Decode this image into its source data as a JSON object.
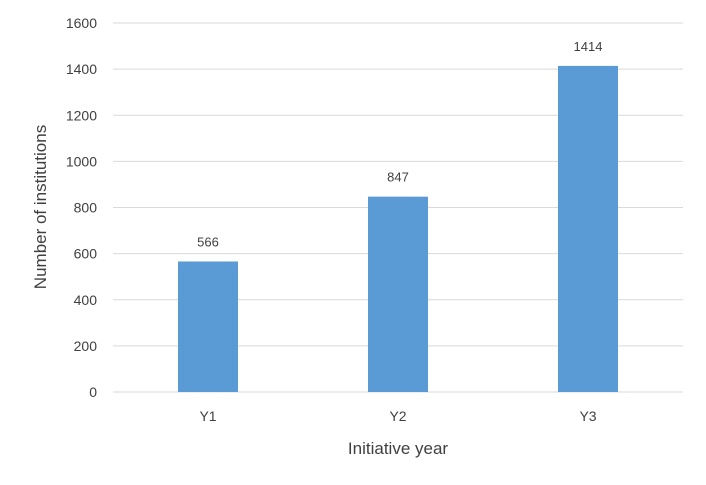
{
  "chart_data": {
    "type": "bar",
    "categories": [
      "Y1",
      "Y2",
      "Y3"
    ],
    "values": [
      566,
      847,
      1414
    ],
    "data_labels": [
      "566",
      "847",
      "1414"
    ],
    "xlabel": "Initiative year",
    "ylabel": "Number of institutions",
    "ylim": [
      0,
      1600
    ],
    "yticks": [
      "0",
      "200",
      "400",
      "600",
      "800",
      "1000",
      "1200",
      "1400",
      "1600"
    ],
    "grid": true,
    "legend": "none",
    "bar_color": "#5b9bd5",
    "grid_color": "#d9d9d9"
  }
}
